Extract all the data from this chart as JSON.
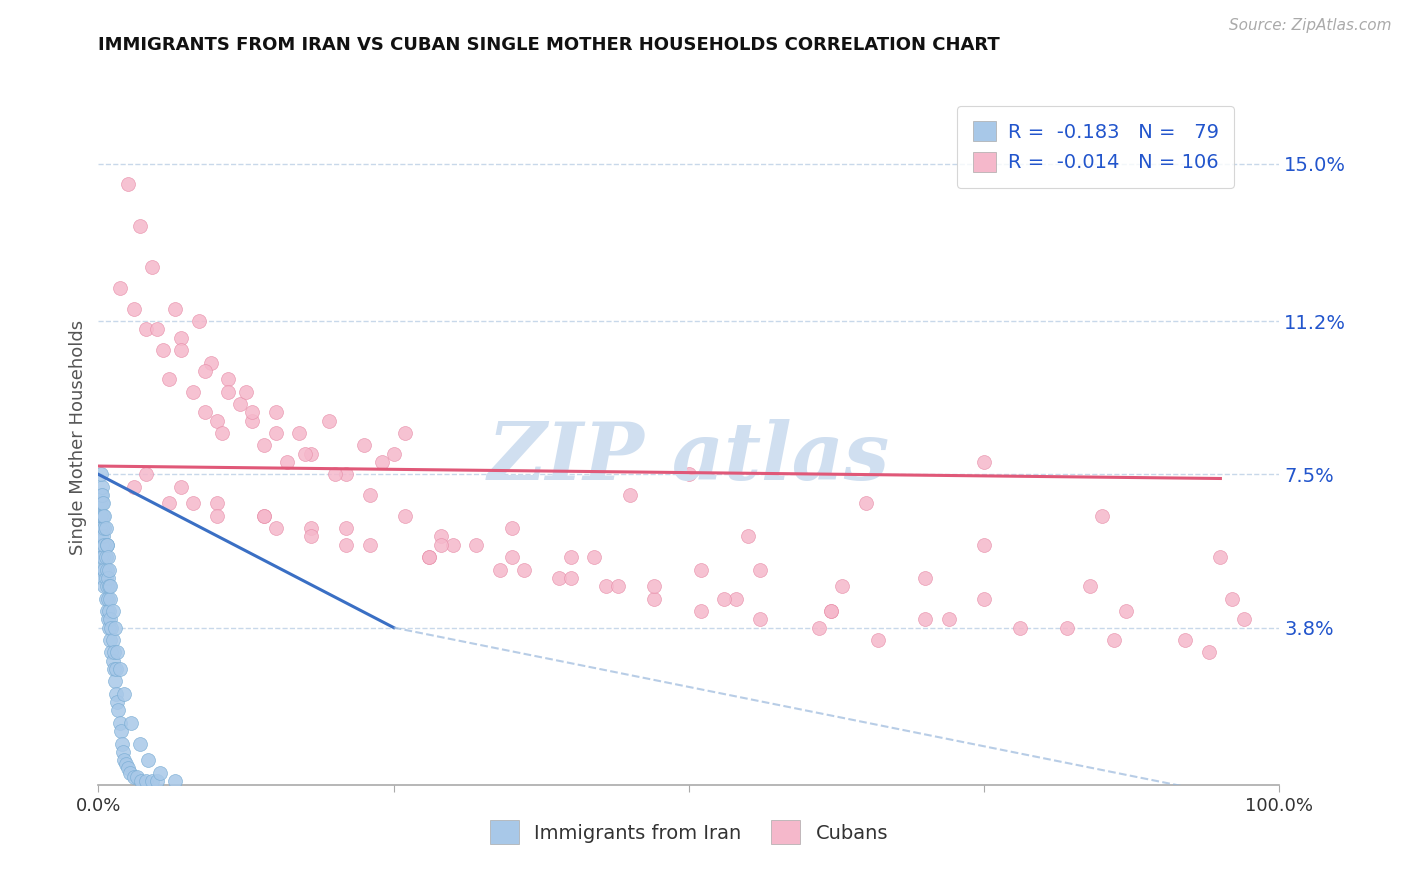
{
  "title": "IMMIGRANTS FROM IRAN VS CUBAN SINGLE MOTHER HOUSEHOLDS CORRELATION CHART",
  "source": "Source: ZipAtlas.com",
  "xlabel_iran": "Immigrants from Iran",
  "xlabel_cuban": "Cubans",
  "ylabel": "Single Mother Households",
  "xlim": [
    0.0,
    1.0
  ],
  "ylim": [
    0.0,
    0.168
  ],
  "yticks": [
    0.038,
    0.075,
    0.112,
    0.15
  ],
  "ytick_labels": [
    "3.8%",
    "7.5%",
    "11.2%",
    "15.0%"
  ],
  "iran_R": -0.183,
  "iran_N": 79,
  "cuban_R": -0.014,
  "cuban_N": 106,
  "iran_color": "#a8c8e8",
  "iran_edge_color": "#7aadd4",
  "cuban_color": "#f5b8cb",
  "cuban_edge_color": "#e890aa",
  "iran_line_color": "#3a6fc4",
  "iran_dash_color": "#9ab8dc",
  "cuban_line_color": "#e05878",
  "background_color": "#ffffff",
  "grid_color": "#c8d8ea",
  "title_color": "#111111",
  "legend_R_color": "#2255cc",
  "axis_label_color": "#555555",
  "watermark_color": "#d0dff0",
  "iran_scatter_x": [
    0.001,
    0.001,
    0.002,
    0.002,
    0.002,
    0.002,
    0.003,
    0.003,
    0.003,
    0.003,
    0.003,
    0.004,
    0.004,
    0.004,
    0.004,
    0.005,
    0.005,
    0.005,
    0.005,
    0.006,
    0.006,
    0.006,
    0.007,
    0.007,
    0.007,
    0.007,
    0.008,
    0.008,
    0.008,
    0.009,
    0.009,
    0.009,
    0.01,
    0.01,
    0.01,
    0.011,
    0.011,
    0.012,
    0.012,
    0.013,
    0.013,
    0.014,
    0.015,
    0.015,
    0.016,
    0.017,
    0.018,
    0.019,
    0.02,
    0.021,
    0.022,
    0.023,
    0.025,
    0.027,
    0.03,
    0.033,
    0.036,
    0.04,
    0.045,
    0.05,
    0.002,
    0.003,
    0.004,
    0.005,
    0.006,
    0.007,
    0.008,
    0.009,
    0.01,
    0.012,
    0.014,
    0.016,
    0.018,
    0.022,
    0.028,
    0.035,
    0.042,
    0.052,
    0.065
  ],
  "iran_scatter_y": [
    0.062,
    0.068,
    0.055,
    0.06,
    0.065,
    0.07,
    0.052,
    0.058,
    0.062,
    0.068,
    0.072,
    0.05,
    0.055,
    0.06,
    0.065,
    0.048,
    0.052,
    0.058,
    0.062,
    0.045,
    0.05,
    0.055,
    0.042,
    0.048,
    0.052,
    0.058,
    0.04,
    0.045,
    0.05,
    0.038,
    0.042,
    0.048,
    0.035,
    0.04,
    0.045,
    0.032,
    0.038,
    0.03,
    0.035,
    0.028,
    0.032,
    0.025,
    0.022,
    0.028,
    0.02,
    0.018,
    0.015,
    0.013,
    0.01,
    0.008,
    0.006,
    0.005,
    0.004,
    0.003,
    0.002,
    0.002,
    0.001,
    0.001,
    0.001,
    0.001,
    0.075,
    0.07,
    0.068,
    0.065,
    0.062,
    0.058,
    0.055,
    0.052,
    0.048,
    0.042,
    0.038,
    0.032,
    0.028,
    0.022,
    0.015,
    0.01,
    0.006,
    0.003,
    0.001
  ],
  "cuban_scatter_x": [
    0.018,
    0.025,
    0.035,
    0.03,
    0.045,
    0.04,
    0.055,
    0.065,
    0.06,
    0.07,
    0.08,
    0.085,
    0.09,
    0.095,
    0.1,
    0.11,
    0.105,
    0.12,
    0.13,
    0.125,
    0.14,
    0.15,
    0.16,
    0.17,
    0.18,
    0.195,
    0.21,
    0.225,
    0.24,
    0.26,
    0.05,
    0.07,
    0.09,
    0.11,
    0.13,
    0.15,
    0.175,
    0.2,
    0.23,
    0.26,
    0.29,
    0.32,
    0.35,
    0.39,
    0.43,
    0.47,
    0.51,
    0.56,
    0.61,
    0.66,
    0.04,
    0.07,
    0.1,
    0.14,
    0.18,
    0.23,
    0.28,
    0.34,
    0.4,
    0.47,
    0.54,
    0.62,
    0.7,
    0.78,
    0.86,
    0.94,
    0.06,
    0.1,
    0.15,
    0.21,
    0.28,
    0.36,
    0.44,
    0.53,
    0.62,
    0.72,
    0.82,
    0.92,
    0.03,
    0.08,
    0.14,
    0.21,
    0.3,
    0.4,
    0.51,
    0.63,
    0.75,
    0.87,
    0.97,
    0.18,
    0.29,
    0.42,
    0.56,
    0.7,
    0.84,
    0.96,
    0.35,
    0.55,
    0.75,
    0.95,
    0.45,
    0.65,
    0.85,
    0.25,
    0.75,
    0.5
  ],
  "cuban_scatter_y": [
    0.12,
    0.145,
    0.135,
    0.115,
    0.125,
    0.11,
    0.105,
    0.115,
    0.098,
    0.108,
    0.095,
    0.112,
    0.09,
    0.102,
    0.088,
    0.098,
    0.085,
    0.092,
    0.088,
    0.095,
    0.082,
    0.09,
    0.078,
    0.085,
    0.08,
    0.088,
    0.075,
    0.082,
    0.078,
    0.085,
    0.11,
    0.105,
    0.1,
    0.095,
    0.09,
    0.085,
    0.08,
    0.075,
    0.07,
    0.065,
    0.06,
    0.058,
    0.055,
    0.05,
    0.048,
    0.045,
    0.042,
    0.04,
    0.038,
    0.035,
    0.075,
    0.072,
    0.068,
    0.065,
    0.062,
    0.058,
    0.055,
    0.052,
    0.05,
    0.048,
    0.045,
    0.042,
    0.04,
    0.038,
    0.035,
    0.032,
    0.068,
    0.065,
    0.062,
    0.058,
    0.055,
    0.052,
    0.048,
    0.045,
    0.042,
    0.04,
    0.038,
    0.035,
    0.072,
    0.068,
    0.065,
    0.062,
    0.058,
    0.055,
    0.052,
    0.048,
    0.045,
    0.042,
    0.04,
    0.06,
    0.058,
    0.055,
    0.052,
    0.05,
    0.048,
    0.045,
    0.062,
    0.06,
    0.058,
    0.055,
    0.07,
    0.068,
    0.065,
    0.08,
    0.078,
    0.075
  ]
}
